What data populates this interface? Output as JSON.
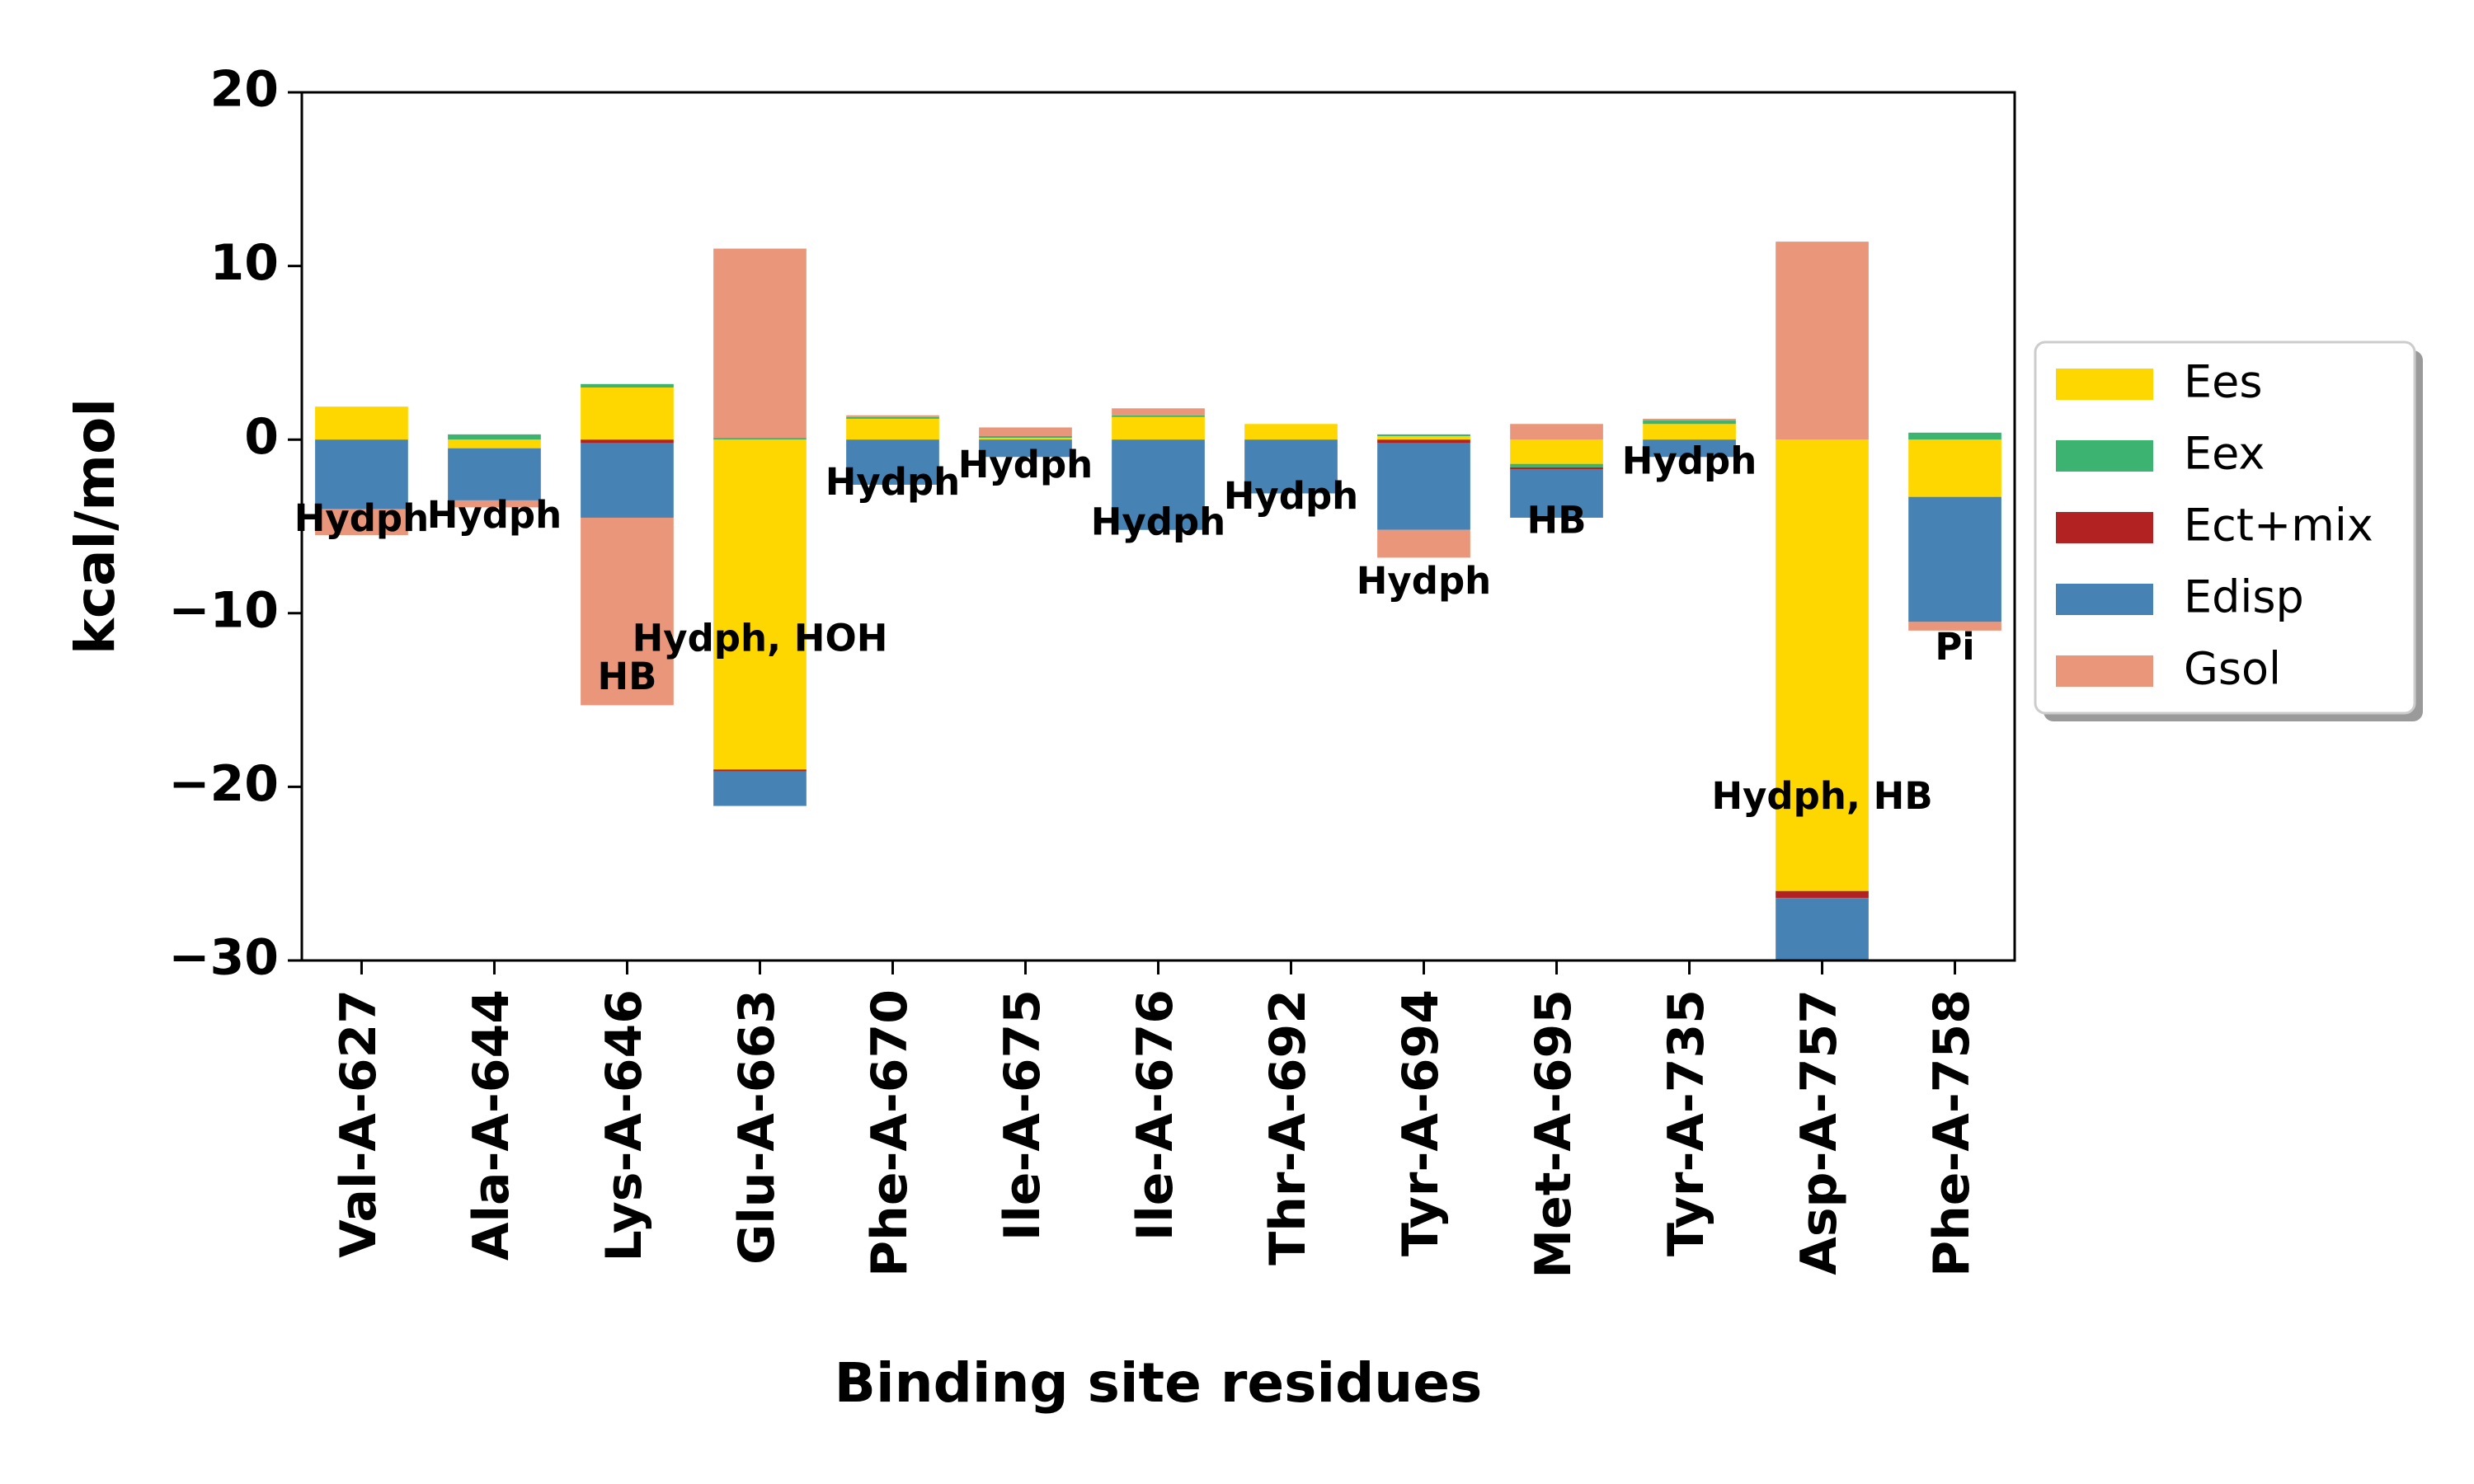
{
  "chart_data": {
    "type": "bar",
    "stacked": true,
    "xlabel": "Binding site residues",
    "ylabel": "kcal/mol",
    "ylim": [
      -30,
      20
    ],
    "yticks": [
      -30,
      -20,
      -10,
      0,
      10,
      20
    ],
    "ytick_labels": [
      "−30",
      "−20",
      "−10",
      "0",
      "10",
      "20"
    ],
    "grid": false,
    "legend_position": "right",
    "categories": [
      "Val-A-627",
      "Ala-A-644",
      "Lys-A-646",
      "Glu-A-663",
      "Phe-A-670",
      "Ile-A-675",
      "Ile-A-676",
      "Thr-A-692",
      "Tyr-A-694",
      "Met-A-695",
      "Tyr-A-735",
      "Asp-A-757",
      "Phe-A-758"
    ],
    "series": [
      {
        "name": "Ees",
        "color": "#FFD700",
        "values": [
          1.9,
          -0.5,
          3.0,
          -19.0,
          1.2,
          0.1,
          1.3,
          0.9,
          0.2,
          -1.4,
          0.9,
          -26.0,
          -3.3
        ]
      },
      {
        "name": "Eex",
        "color": "#3CB371",
        "values": [
          0.0,
          0.3,
          0.2,
          0.1,
          0.1,
          0.1,
          0.1,
          0.0,
          0.1,
          -0.2,
          0.2,
          0.0,
          0.4
        ]
      },
      {
        "name": "Ect+mix",
        "color": "#B22222",
        "values": [
          0.0,
          0.0,
          -0.2,
          -0.1,
          0.0,
          0.0,
          0.0,
          0.0,
          -0.2,
          -0.1,
          0.0,
          -0.4,
          0.0
        ]
      },
      {
        "name": "Edisp",
        "color": "#4682B4",
        "values": [
          -4.0,
          -3.0,
          -4.3,
          -2.0,
          -2.6,
          -1.0,
          -5.2,
          -3.1,
          -5.0,
          -2.8,
          -1.0,
          -3.6,
          -7.2
        ]
      },
      {
        "name": "Gsol",
        "color": "#E9967A",
        "values": [
          -1.5,
          -0.4,
          -10.8,
          10.9,
          0.1,
          0.5,
          0.4,
          0.0,
          -1.6,
          0.9,
          0.1,
          11.4,
          -0.5
        ]
      }
    ],
    "annotations": [
      {
        "text": "Hydph",
        "x": 0,
        "y": -4.7
      },
      {
        "text": "Hydph",
        "x": 1,
        "y": -4.5
      },
      {
        "text": "HB",
        "x": 2,
        "y": -13.8
      },
      {
        "text": "Hydph, HOH",
        "x": 3.0,
        "y": -11.6
      },
      {
        "text": "Hydph",
        "x": 4,
        "y": -2.6
      },
      {
        "text": "Hydph",
        "x": 5,
        "y": -1.6
      },
      {
        "text": "Hydph",
        "x": 6,
        "y": -4.9
      },
      {
        "text": "Hydph",
        "x": 7,
        "y": -3.4
      },
      {
        "text": "Hydph",
        "x": 8,
        "y": -8.3
      },
      {
        "text": "HB",
        "x": 9,
        "y": -4.8
      },
      {
        "text": "Hydph",
        "x": 10,
        "y": -1.4
      },
      {
        "text": "Hydph, HB",
        "x": 11,
        "y": -20.7
      },
      {
        "text": "Pi",
        "x": 12,
        "y": -12.1
      }
    ]
  }
}
